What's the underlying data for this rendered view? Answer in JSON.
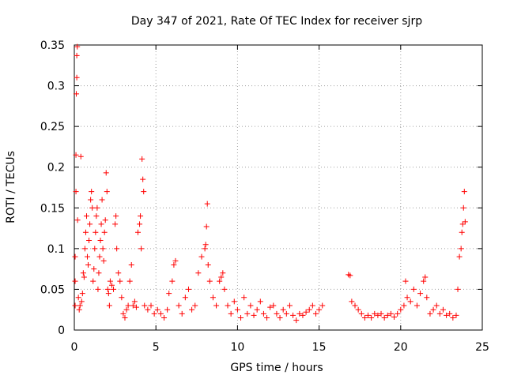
{
  "chart_data": {
    "type": "scatter",
    "title": "Day 347 of 2021, Rate Of TEC Index for receiver sjrp",
    "xlabel": "GPS time / hours",
    "ylabel": "ROTI / TECUs",
    "xlim": [
      0,
      25
    ],
    "ylim": [
      0,
      0.35
    ],
    "xticks": [
      0,
      5,
      10,
      15,
      20,
      25
    ],
    "xtick_labels": [
      "0",
      "5",
      "10",
      "15",
      "20",
      "25"
    ],
    "yticks": [
      0,
      0.05,
      0.1,
      0.15,
      0.2,
      0.25,
      0.3,
      0.35
    ],
    "ytick_labels": [
      "0",
      "0.05",
      "0.1",
      "0.15",
      "0.2",
      "0.25",
      "0.3",
      "0.35"
    ],
    "grid": true,
    "marker": "+",
    "color": "#ff0000",
    "series": [
      {
        "name": "ROTI",
        "points": [
          [
            0.05,
            0.03
          ],
          [
            0.05,
            0.06
          ],
          [
            0.05,
            0.09
          ],
          [
            0.1,
            0.17
          ],
          [
            0.1,
            0.215
          ],
          [
            0.12,
            0.29
          ],
          [
            0.15,
            0.31
          ],
          [
            0.15,
            0.337
          ],
          [
            0.18,
            0.348
          ],
          [
            0.2,
            0.135
          ],
          [
            0.25,
            0.04
          ],
          [
            0.3,
            0.025
          ],
          [
            0.35,
            0.03
          ],
          [
            0.4,
            0.213
          ],
          [
            0.45,
            0.035
          ],
          [
            0.5,
            0.045
          ],
          [
            0.55,
            0.07
          ],
          [
            0.6,
            0.065
          ],
          [
            0.65,
            0.1
          ],
          [
            0.7,
            0.12
          ],
          [
            0.75,
            0.14
          ],
          [
            0.8,
            0.09
          ],
          [
            0.85,
            0.08
          ],
          [
            0.9,
            0.11
          ],
          [
            0.95,
            0.13
          ],
          [
            1.0,
            0.16
          ],
          [
            1.05,
            0.17
          ],
          [
            1.1,
            0.15
          ],
          [
            1.15,
            0.06
          ],
          [
            1.2,
            0.075
          ],
          [
            1.25,
            0.1
          ],
          [
            1.3,
            0.12
          ],
          [
            1.35,
            0.14
          ],
          [
            1.4,
            0.15
          ],
          [
            1.45,
            0.05
          ],
          [
            1.5,
            0.07
          ],
          [
            1.55,
            0.09
          ],
          [
            1.6,
            0.11
          ],
          [
            1.65,
            0.13
          ],
          [
            1.7,
            0.16
          ],
          [
            1.75,
            0.1
          ],
          [
            1.8,
            0.085
          ],
          [
            1.85,
            0.12
          ],
          [
            1.9,
            0.135
          ],
          [
            1.95,
            0.193
          ],
          [
            2.0,
            0.17
          ],
          [
            2.05,
            0.05
          ],
          [
            2.1,
            0.045
          ],
          [
            2.15,
            0.03
          ],
          [
            2.2,
            0.06
          ],
          [
            2.3,
            0.055
          ],
          [
            2.4,
            0.05
          ],
          [
            2.5,
            0.13
          ],
          [
            2.55,
            0.14
          ],
          [
            2.6,
            0.1
          ],
          [
            2.7,
            0.07
          ],
          [
            2.8,
            0.06
          ],
          [
            2.9,
            0.04
          ],
          [
            3.0,
            0.02
          ],
          [
            3.1,
            0.015
          ],
          [
            3.2,
            0.025
          ],
          [
            3.3,
            0.03
          ],
          [
            3.4,
            0.06
          ],
          [
            3.5,
            0.08
          ],
          [
            3.6,
            0.03
          ],
          [
            3.7,
            0.035
          ],
          [
            3.8,
            0.028
          ],
          [
            3.9,
            0.12
          ],
          [
            4.0,
            0.13
          ],
          [
            4.05,
            0.14
          ],
          [
            4.1,
            0.1
          ],
          [
            4.15,
            0.21
          ],
          [
            4.2,
            0.185
          ],
          [
            4.25,
            0.17
          ],
          [
            4.3,
            0.03
          ],
          [
            4.5,
            0.025
          ],
          [
            4.7,
            0.03
          ],
          [
            4.9,
            0.02
          ],
          [
            5.1,
            0.025
          ],
          [
            5.3,
            0.02
          ],
          [
            5.5,
            0.015
          ],
          [
            5.7,
            0.025
          ],
          [
            5.8,
            0.045
          ],
          [
            6.0,
            0.06
          ],
          [
            6.1,
            0.08
          ],
          [
            6.2,
            0.085
          ],
          [
            6.4,
            0.03
          ],
          [
            6.6,
            0.02
          ],
          [
            6.8,
            0.04
          ],
          [
            7.0,
            0.05
          ],
          [
            7.2,
            0.025
          ],
          [
            7.4,
            0.03
          ],
          [
            7.6,
            0.07
          ],
          [
            7.8,
            0.09
          ],
          [
            8.0,
            0.1
          ],
          [
            8.05,
            0.105
          ],
          [
            8.1,
            0.127
          ],
          [
            8.15,
            0.155
          ],
          [
            8.2,
            0.08
          ],
          [
            8.3,
            0.06
          ],
          [
            8.5,
            0.04
          ],
          [
            8.7,
            0.03
          ],
          [
            8.9,
            0.06
          ],
          [
            9.0,
            0.065
          ],
          [
            9.1,
            0.07
          ],
          [
            9.2,
            0.05
          ],
          [
            9.4,
            0.03
          ],
          [
            9.6,
            0.02
          ],
          [
            9.8,
            0.035
          ],
          [
            10.0,
            0.025
          ],
          [
            10.2,
            0.015
          ],
          [
            10.4,
            0.04
          ],
          [
            10.6,
            0.02
          ],
          [
            10.8,
            0.03
          ],
          [
            11.0,
            0.018
          ],
          [
            11.2,
            0.025
          ],
          [
            11.4,
            0.035
          ],
          [
            11.6,
            0.02
          ],
          [
            11.8,
            0.015
          ],
          [
            12.0,
            0.028
          ],
          [
            12.2,
            0.03
          ],
          [
            12.4,
            0.02
          ],
          [
            12.6,
            0.015
          ],
          [
            12.8,
            0.025
          ],
          [
            13.0,
            0.02
          ],
          [
            13.2,
            0.03
          ],
          [
            13.4,
            0.018
          ],
          [
            13.6,
            0.012
          ],
          [
            13.8,
            0.02
          ],
          [
            14.0,
            0.018
          ],
          [
            14.2,
            0.022
          ],
          [
            14.4,
            0.025
          ],
          [
            14.6,
            0.03
          ],
          [
            14.8,
            0.02
          ],
          [
            15.0,
            0.025
          ],
          [
            15.2,
            0.03
          ],
          [
            16.8,
            0.068
          ],
          [
            16.9,
            0.067
          ],
          [
            17.0,
            0.035
          ],
          [
            17.2,
            0.03
          ],
          [
            17.4,
            0.025
          ],
          [
            17.6,
            0.02
          ],
          [
            17.8,
            0.015
          ],
          [
            18.0,
            0.018
          ],
          [
            18.2,
            0.015
          ],
          [
            18.4,
            0.02
          ],
          [
            18.6,
            0.018
          ],
          [
            18.8,
            0.02
          ],
          [
            19.0,
            0.015
          ],
          [
            19.2,
            0.018
          ],
          [
            19.4,
            0.02
          ],
          [
            19.6,
            0.016
          ],
          [
            19.8,
            0.02
          ],
          [
            20.0,
            0.025
          ],
          [
            20.2,
            0.03
          ],
          [
            20.3,
            0.06
          ],
          [
            20.4,
            0.04
          ],
          [
            20.6,
            0.035
          ],
          [
            20.8,
            0.05
          ],
          [
            21.0,
            0.03
          ],
          [
            21.2,
            0.045
          ],
          [
            21.4,
            0.06
          ],
          [
            21.5,
            0.065
          ],
          [
            21.6,
            0.04
          ],
          [
            21.8,
            0.02
          ],
          [
            22.0,
            0.025
          ],
          [
            22.2,
            0.03
          ],
          [
            22.4,
            0.02
          ],
          [
            22.6,
            0.025
          ],
          [
            22.8,
            0.018
          ],
          [
            23.0,
            0.02
          ],
          [
            23.2,
            0.015
          ],
          [
            23.4,
            0.018
          ],
          [
            23.5,
            0.05
          ],
          [
            23.6,
            0.09
          ],
          [
            23.7,
            0.1
          ],
          [
            23.75,
            0.12
          ],
          [
            23.8,
            0.13
          ],
          [
            23.85,
            0.15
          ],
          [
            23.9,
            0.17
          ],
          [
            23.95,
            0.133
          ]
        ]
      }
    ]
  }
}
